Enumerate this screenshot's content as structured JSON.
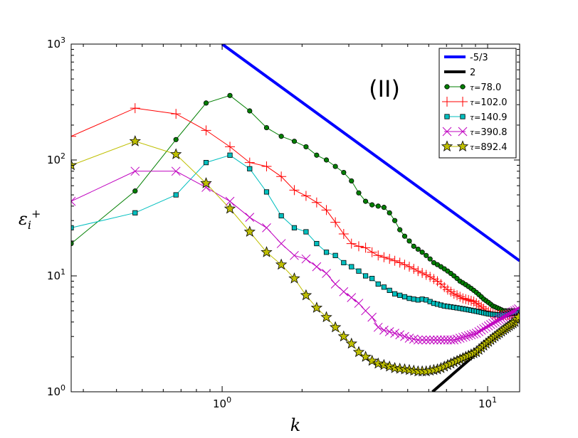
{
  "chart_data": {
    "type": "line",
    "title": "",
    "xlabel": "k",
    "ylabel": "εi+",
    "xscale": "log",
    "yscale": "log",
    "xlim": [
      0.27,
      13.2
    ],
    "ylim": [
      1,
      1000
    ],
    "x_ticks": [
      {
        "value": 1,
        "base": "10",
        "exp": "0"
      },
      {
        "value": 10,
        "base": "10",
        "exp": "1"
      }
    ],
    "y_ticks": [
      {
        "value": 1,
        "base": "10",
        "exp": "0"
      },
      {
        "value": 10,
        "base": "10",
        "exp": "1"
      },
      {
        "value": 100,
        "base": "10",
        "exp": "2"
      },
      {
        "value": 1000,
        "base": "10",
        "exp": "3"
      }
    ],
    "annotation": "(II)",
    "legend_position": "top-right",
    "ref_lines": [
      {
        "name": "-5/3",
        "color": "#0000ff",
        "x": [
          1.0,
          13.2
        ],
        "y": [
          1000,
          13.5
        ]
      },
      {
        "name": "2",
        "color": "#000000",
        "x": [
          6.2,
          13.2
        ],
        "y": [
          1.0,
          4.5
        ]
      }
    ],
    "series": [
      {
        "name": "78.0",
        "tau_prefix": "τ=",
        "color": "#007f00",
        "marker": "circle",
        "x": [
          0.27,
          0.47,
          0.67,
          0.87,
          1.07,
          1.27,
          1.47,
          1.67,
          1.87,
          2.07,
          2.27,
          2.47,
          2.67,
          2.87,
          3.07,
          3.27,
          3.47,
          3.67,
          3.87,
          4.07,
          4.27,
          4.47,
          4.67,
          4.87,
          5.07,
          5.27,
          5.47,
          5.67,
          5.87,
          6.07,
          6.27,
          6.47,
          6.67,
          6.87,
          7.07,
          7.27,
          7.47,
          7.67,
          7.87,
          8.07,
          8.27,
          8.47,
          8.67,
          8.87,
          9.07,
          9.27,
          9.47,
          9.67,
          9.87,
          10.07,
          10.27,
          10.47,
          10.67,
          10.87,
          11.07,
          11.27,
          11.47,
          11.67,
          11.87,
          12.07,
          12.27,
          12.47,
          12.67,
          12.87,
          13.07
        ],
        "y": [
          19,
          54,
          150,
          310,
          360,
          265,
          190,
          160,
          145,
          130,
          110,
          100,
          88,
          78,
          66,
          52,
          44,
          41,
          40,
          39,
          35,
          30,
          25,
          22,
          20,
          18,
          17,
          16,
          15,
          14,
          13,
          12.5,
          12,
          11.5,
          11,
          10.5,
          10,
          9.5,
          9,
          8.7,
          8.4,
          8.1,
          7.8,
          7.5,
          7.2,
          6.9,
          6.6,
          6.3,
          6.1,
          5.9,
          5.7,
          5.5,
          5.4,
          5.3,
          5.2,
          5.1,
          5.0,
          5.0,
          5.0,
          5.0,
          5.0,
          5.0,
          5.0,
          5.0,
          5.0
        ]
      },
      {
        "name": "102.0",
        "tau_prefix": "τ=",
        "color": "#ff0000",
        "marker": "plus",
        "x": [
          0.27,
          0.47,
          0.67,
          0.87,
          1.07,
          1.27,
          1.47,
          1.67,
          1.87,
          2.07,
          2.27,
          2.47,
          2.67,
          2.87,
          3.07,
          3.27,
          3.47,
          3.67,
          3.87,
          4.07,
          4.27,
          4.47,
          4.67,
          4.87,
          5.07,
          5.27,
          5.47,
          5.67,
          5.87,
          6.07,
          6.27,
          6.47,
          6.67,
          6.87,
          7.07,
          7.27,
          7.47,
          7.67,
          7.87,
          8.07,
          8.27,
          8.47,
          8.67,
          8.87,
          9.07,
          9.27,
          9.47,
          9.67,
          9.87,
          10.07,
          10.27,
          10.47,
          10.67,
          10.87,
          11.07,
          11.27,
          11.47,
          11.67,
          11.87,
          12.07,
          12.27,
          12.47,
          12.67,
          12.87,
          13.07
        ],
        "y": [
          160,
          280,
          250,
          180,
          130,
          95,
          88,
          72,
          55,
          49,
          43,
          37,
          29,
          23,
          19,
          18,
          17.5,
          16,
          15,
          14.5,
          14,
          13.5,
          13,
          12.5,
          12,
          11.5,
          11,
          10.6,
          10.2,
          9.8,
          9.4,
          9,
          8.5,
          8,
          7.6,
          7.3,
          7,
          6.8,
          6.6,
          6.4,
          6.3,
          6.2,
          6.1,
          6,
          5.8,
          5.6,
          5.4,
          5.2,
          5.0,
          4.9,
          4.8,
          4.7,
          4.6,
          4.6,
          4.6,
          4.6,
          4.6,
          4.6,
          4.6,
          4.6,
          4.6,
          4.6,
          4.6,
          4.6,
          4.6
        ]
      },
      {
        "name": "140.9",
        "tau_prefix": "τ=",
        "color": "#00bfbf",
        "marker": "square",
        "x": [
          0.27,
          0.47,
          0.67,
          0.87,
          1.07,
          1.27,
          1.47,
          1.67,
          1.87,
          2.07,
          2.27,
          2.47,
          2.67,
          2.87,
          3.07,
          3.27,
          3.47,
          3.67,
          3.87,
          4.07,
          4.27,
          4.47,
          4.67,
          4.87,
          5.07,
          5.27,
          5.47,
          5.67,
          5.87,
          6.07,
          6.27,
          6.47,
          6.67,
          6.87,
          7.07,
          7.27,
          7.47,
          7.67,
          7.87,
          8.07,
          8.27,
          8.47,
          8.67,
          8.87,
          9.07,
          9.27,
          9.47,
          9.67,
          9.87,
          10.07,
          10.27,
          10.47,
          10.67,
          10.87,
          11.07,
          11.27,
          11.47,
          11.67,
          11.87,
          12.07,
          12.27,
          12.47,
          12.67,
          12.87,
          13.07
        ],
        "y": [
          26,
          35,
          50,
          95,
          110,
          84,
          53,
          33,
          26,
          24,
          19,
          16,
          15,
          13,
          12,
          11,
          10,
          9.5,
          8.5,
          8,
          7.5,
          7,
          6.8,
          6.6,
          6.4,
          6.3,
          6.2,
          6.3,
          6.2,
          6.0,
          5.8,
          5.7,
          5.6,
          5.5,
          5.45,
          5.4,
          5.35,
          5.3,
          5.25,
          5.2,
          5.15,
          5.1,
          5.05,
          5.0,
          4.95,
          4.9,
          4.85,
          4.8,
          4.75,
          4.7,
          4.68,
          4.66,
          4.64,
          4.62,
          4.6,
          4.6,
          4.6,
          4.6,
          4.65,
          4.7,
          4.75,
          4.8,
          4.85,
          4.9,
          5.0
        ]
      },
      {
        "name": "390.8",
        "tau_prefix": "τ=",
        "color": "#bf00bf",
        "marker": "x",
        "x": [
          0.27,
          0.47,
          0.67,
          0.87,
          1.07,
          1.27,
          1.47,
          1.67,
          1.87,
          2.07,
          2.27,
          2.47,
          2.67,
          2.87,
          3.07,
          3.27,
          3.47,
          3.67,
          3.87,
          4.07,
          4.27,
          4.47,
          4.67,
          4.87,
          5.07,
          5.27,
          5.47,
          5.67,
          5.87,
          6.07,
          6.27,
          6.47,
          6.67,
          6.87,
          7.07,
          7.27,
          7.47,
          7.67,
          7.87,
          8.07,
          8.27,
          8.47,
          8.67,
          8.87,
          9.07,
          9.27,
          9.47,
          9.67,
          9.87,
          10.07,
          10.27,
          10.47,
          10.67,
          10.87,
          11.07,
          11.27,
          11.47,
          11.67,
          11.87,
          12.07,
          12.27,
          12.47,
          12.67,
          12.87,
          13.07
        ],
        "y": [
          44,
          80,
          80,
          58,
          44,
          32,
          26,
          19,
          15,
          14,
          12,
          10.5,
          8.5,
          7.3,
          6.5,
          5.8,
          5.0,
          4.4,
          3.6,
          3.4,
          3.3,
          3.2,
          3.1,
          3.0,
          2.9,
          2.85,
          2.8,
          2.8,
          2.8,
          2.8,
          2.8,
          2.8,
          2.8,
          2.8,
          2.8,
          2.8,
          2.8,
          2.85,
          2.9,
          2.95,
          3.0,
          3.05,
          3.1,
          3.15,
          3.2,
          3.3,
          3.4,
          3.5,
          3.6,
          3.7,
          3.8,
          3.9,
          4.0,
          4.1,
          4.2,
          4.3,
          4.4,
          4.5,
          4.6,
          4.7,
          4.8,
          4.9,
          5.0,
          5.1,
          5.2
        ]
      },
      {
        "name": "892.4",
        "tau_prefix": "τ=",
        "color": "#bfbf00",
        "marker": "star",
        "x": [
          0.27,
          0.47,
          0.67,
          0.87,
          1.07,
          1.27,
          1.47,
          1.67,
          1.87,
          2.07,
          2.27,
          2.47,
          2.67,
          2.87,
          3.07,
          3.27,
          3.47,
          3.67,
          3.87,
          4.07,
          4.27,
          4.47,
          4.67,
          4.87,
          5.07,
          5.27,
          5.47,
          5.67,
          5.87,
          6.07,
          6.27,
          6.47,
          6.67,
          6.87,
          7.07,
          7.27,
          7.47,
          7.67,
          7.87,
          8.07,
          8.27,
          8.47,
          8.67,
          8.87,
          9.07,
          9.27,
          9.47,
          9.67,
          9.87,
          10.07,
          10.27,
          10.47,
          10.67,
          10.87,
          11.07,
          11.27,
          11.47,
          11.67,
          11.87,
          12.07,
          12.27,
          12.47,
          12.67,
          12.87,
          13.07
        ],
        "y": [
          90,
          145,
          112,
          63,
          38,
          24,
          16,
          12.5,
          9.5,
          6.8,
          5.3,
          4.4,
          3.6,
          3.0,
          2.6,
          2.2,
          2.0,
          1.85,
          1.75,
          1.7,
          1.65,
          1.6,
          1.58,
          1.56,
          1.54,
          1.52,
          1.5,
          1.5,
          1.5,
          1.52,
          1.54,
          1.56,
          1.6,
          1.65,
          1.7,
          1.75,
          1.8,
          1.85,
          1.9,
          1.95,
          2.0,
          2.05,
          2.1,
          2.15,
          2.2,
          2.3,
          2.4,
          2.5,
          2.6,
          2.7,
          2.8,
          2.9,
          3.0,
          3.1,
          3.2,
          3.3,
          3.4,
          3.5,
          3.6,
          3.7,
          3.8,
          3.9,
          4.0,
          4.2,
          4.4
        ]
      }
    ]
  }
}
